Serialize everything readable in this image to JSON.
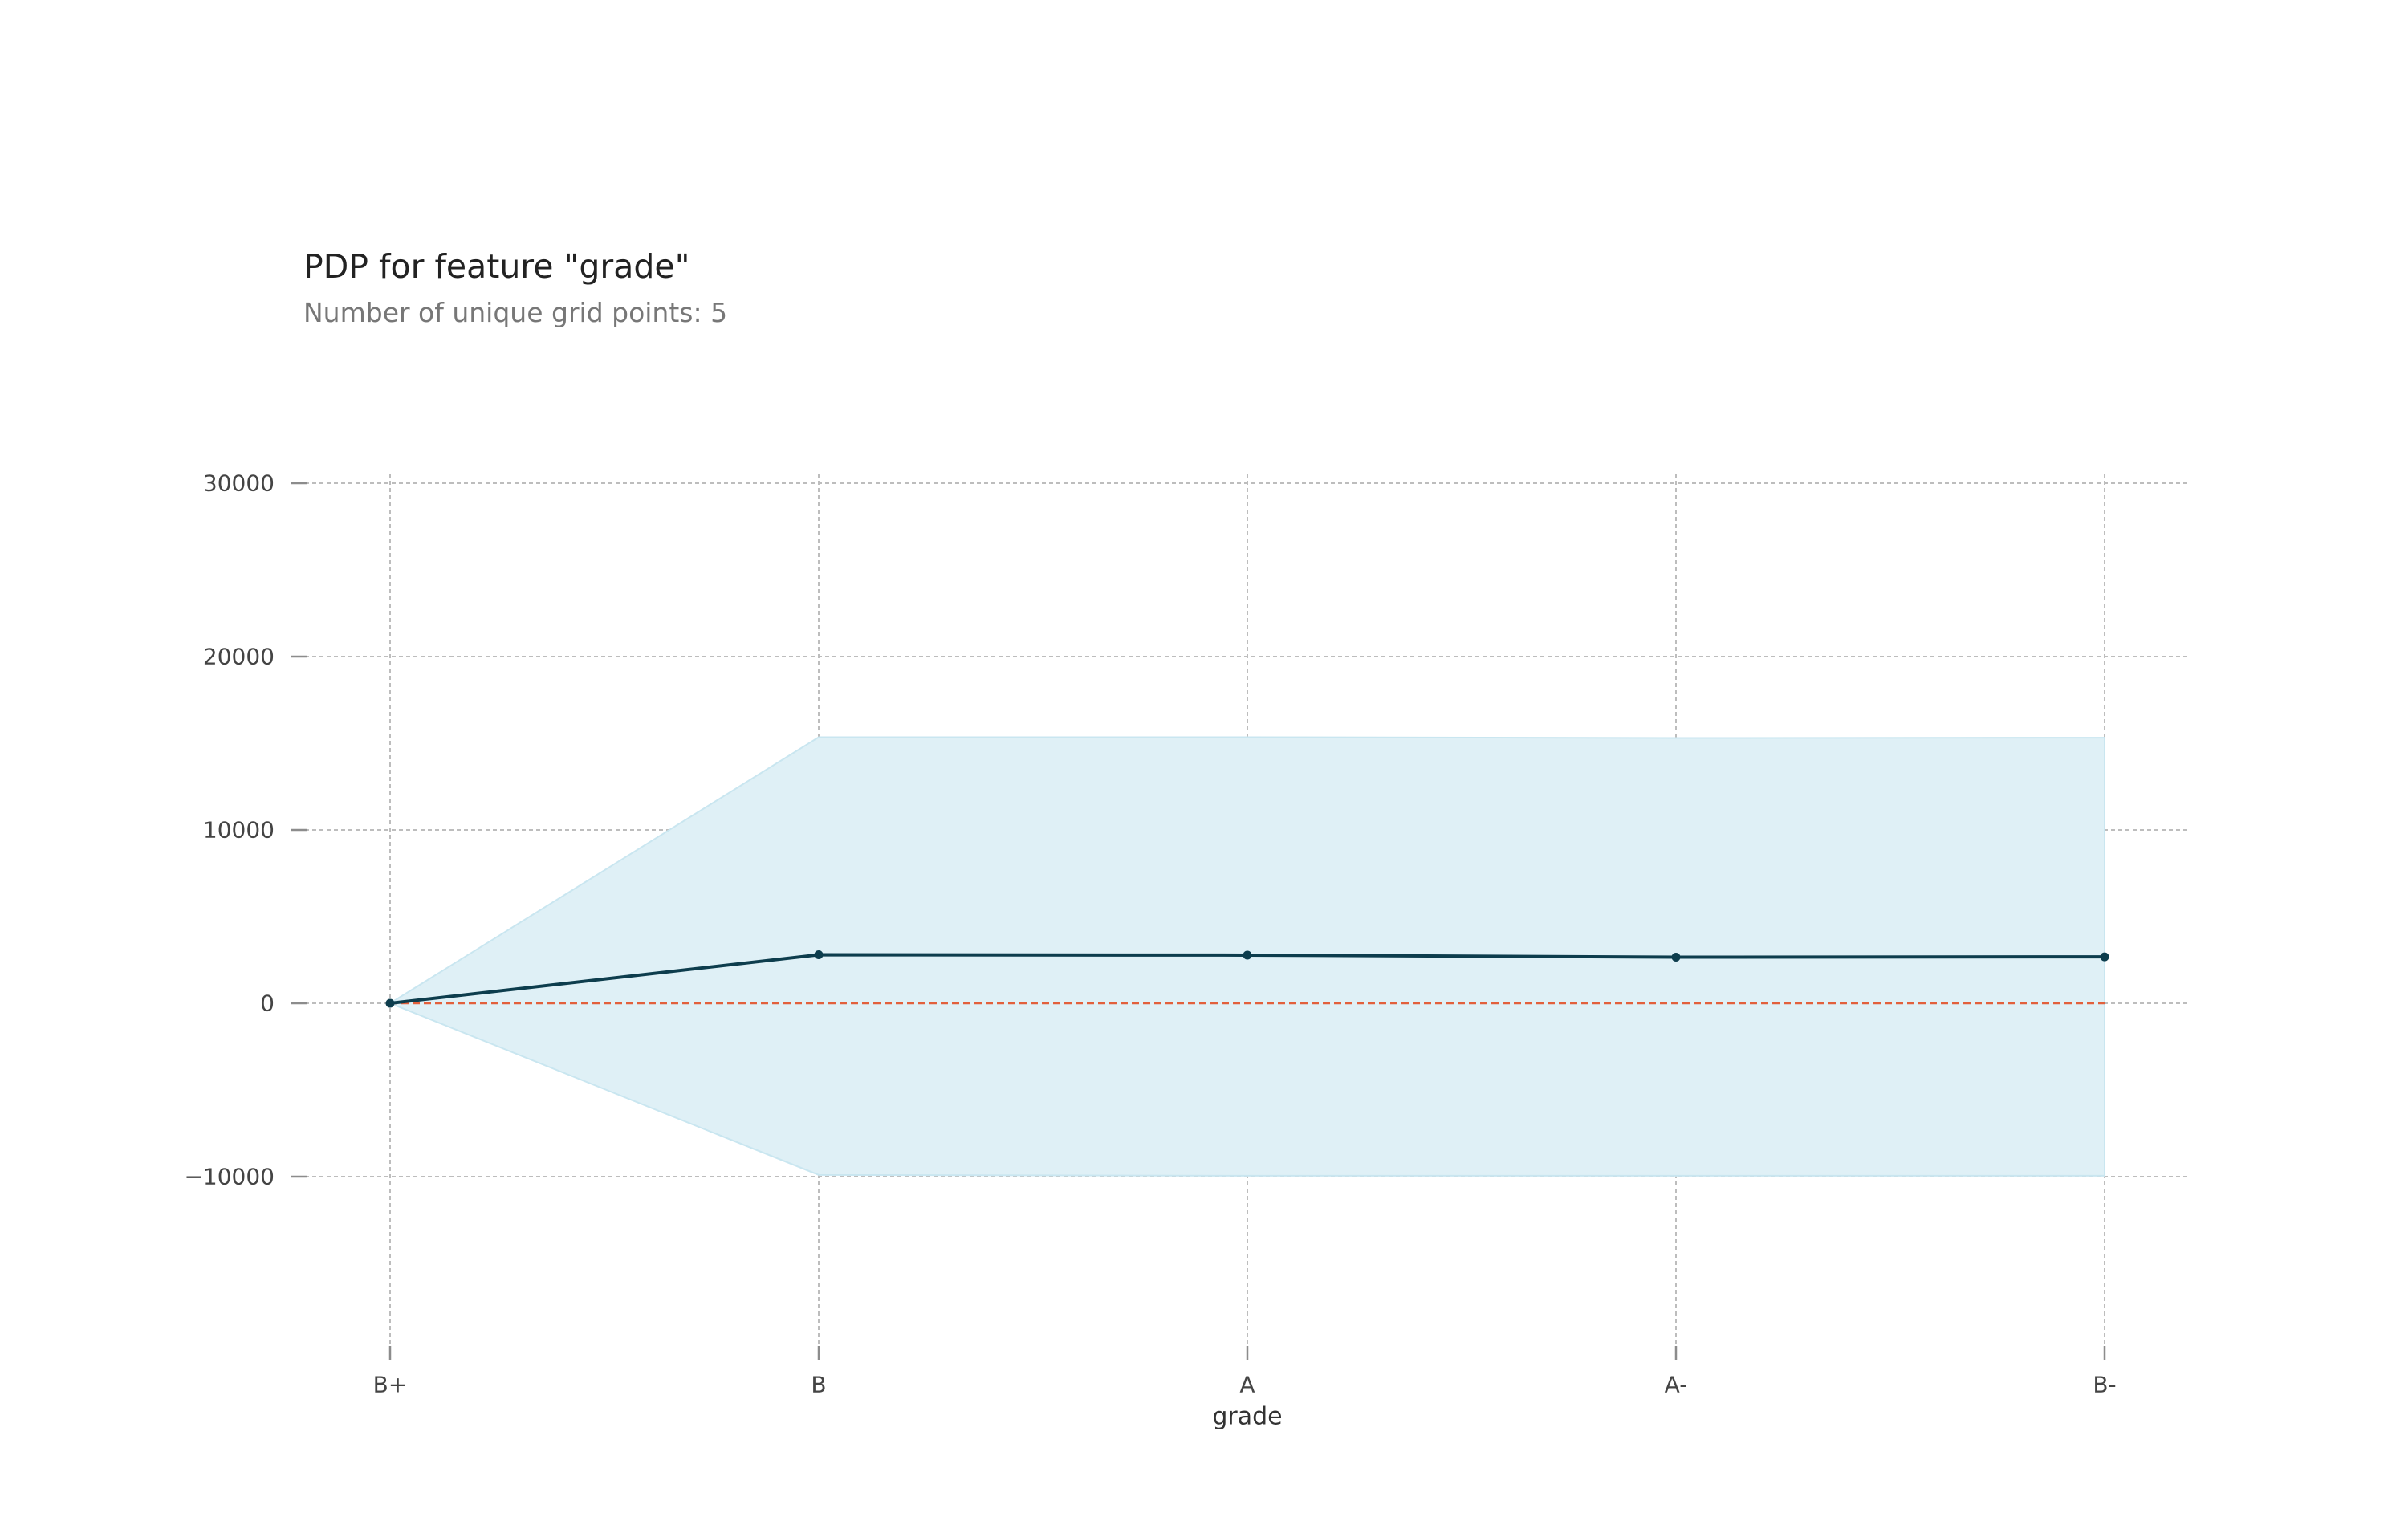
{
  "chart_data": {
    "type": "line",
    "title": "PDP for feature \"grade\"",
    "subtitle": "Number of unique grid points: 5",
    "xlabel": "grade",
    "ylabel": "",
    "categories": [
      "B+",
      "B",
      "A",
      "A-",
      "B-"
    ],
    "y_ticks": [
      30000,
      20000,
      10000,
      0,
      -10000
    ],
    "y_tick_labels": [
      "30000",
      "20000",
      "10000",
      "0",
      "−10000"
    ],
    "ylim": [
      -20000,
      30500
    ],
    "grid": true,
    "series": [
      {
        "values": [
          0,
          2800,
          2780,
          2660,
          2680
        ],
        "upper": [
          0,
          15350,
          15350,
          15300,
          15320
        ],
        "lower": [
          0,
          -9900,
          -9950,
          -9950,
          -9950
        ]
      }
    ],
    "baseline": 0,
    "colors": {
      "line": "#0d3d4d",
      "band": "#dff0f6",
      "band_edge": "#c9e6f0",
      "baseline": "#e2603c",
      "grid": "#bdbdbd",
      "tick": "#8c8c8c"
    }
  }
}
